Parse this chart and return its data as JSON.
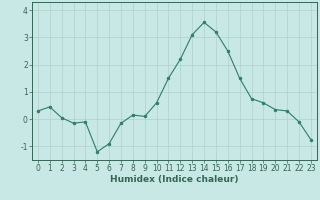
{
  "x": [
    0,
    1,
    2,
    3,
    4,
    5,
    6,
    7,
    8,
    9,
    10,
    11,
    12,
    13,
    14,
    15,
    16,
    17,
    18,
    19,
    20,
    21,
    22,
    23
  ],
  "y": [
    0.3,
    0.45,
    0.05,
    -0.15,
    -0.1,
    -1.2,
    -0.9,
    -0.15,
    0.15,
    0.1,
    0.6,
    1.5,
    2.2,
    3.1,
    3.55,
    3.2,
    2.5,
    1.5,
    0.75,
    0.6,
    0.35,
    0.3,
    -0.1,
    -0.75
  ],
  "xlabel": "Humidex (Indice chaleur)",
  "ylim": [
    -1.5,
    4.3
  ],
  "xlim": [
    -0.5,
    23.5
  ],
  "yticks": [
    -1,
    0,
    1,
    2,
    3,
    4
  ],
  "xticks": [
    0,
    1,
    2,
    3,
    4,
    5,
    6,
    7,
    8,
    9,
    10,
    11,
    12,
    13,
    14,
    15,
    16,
    17,
    18,
    19,
    20,
    21,
    22,
    23
  ],
  "line_color": "#2e7d6e",
  "marker_color": "#2e7d6e",
  "bg_color": "#c8e8e5",
  "grid_color": "#b0d0cc",
  "axis_color": "#336655",
  "xlabel_fontsize": 6.5,
  "tick_fontsize": 5.5,
  "xlabel_fontweight": "bold"
}
